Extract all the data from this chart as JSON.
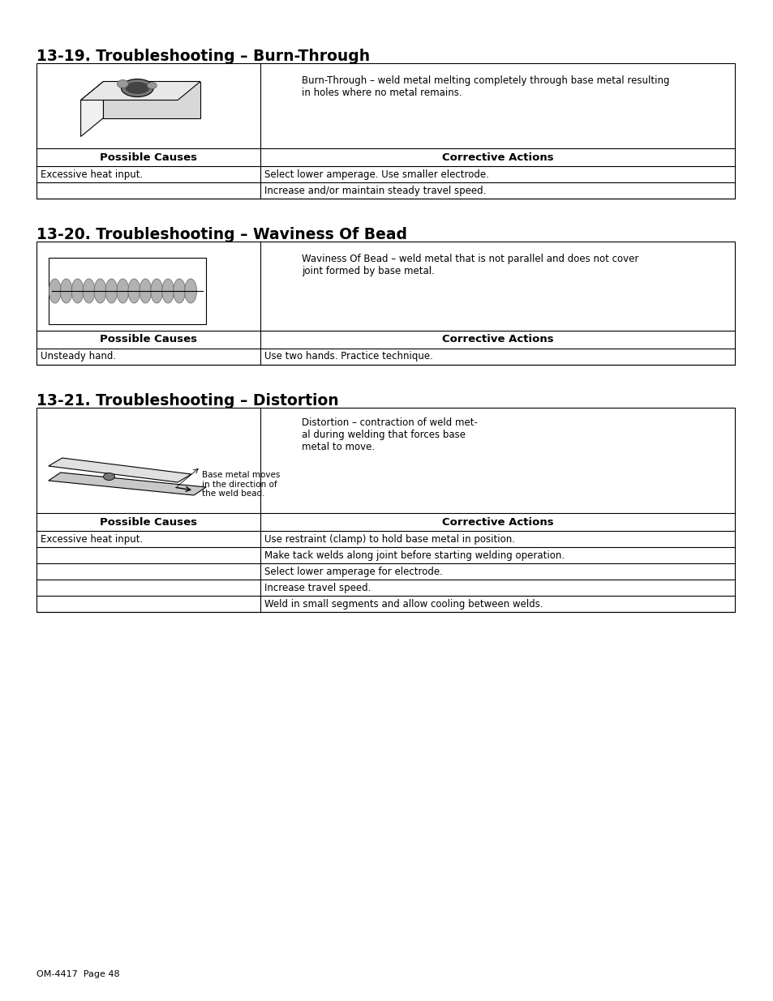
{
  "page_bg": "#ffffff",
  "text_color": "#000000",
  "footer_text": "OM-4417  Page 48",
  "section1": {
    "title": "13-19. Troubleshooting – Burn-Through",
    "description": "Burn-Through – weld metal melting completely through base metal resulting\nin holes where no metal remains.",
    "header_col1": "Possible Causes",
    "header_col2": "Corrective Actions",
    "rows": [
      [
        "Excessive heat input.",
        "Select lower amperage. Use smaller electrode."
      ],
      [
        "",
        "Increase and/or maintain steady travel speed."
      ]
    ]
  },
  "section2": {
    "title": "13-20. Troubleshooting – Waviness Of Bead",
    "description": "Waviness Of Bead – weld metal that is not parallel and does not cover\njoint formed by base metal.",
    "header_col1": "Possible Causes",
    "header_col2": "Corrective Actions",
    "rows": [
      [
        "Unsteady hand.",
        "Use two hands. Practice technique."
      ]
    ]
  },
  "section3": {
    "title": "13-21. Troubleshooting – Distortion",
    "description": "Distortion – contraction of weld met-\nal during welding that forces base\nmetal to move.",
    "image_label": "Base metal moves\nin the direction of\nthe weld bead.",
    "header_col1": "Possible Causes",
    "header_col2": "Corrective Actions",
    "rows": [
      [
        "Excessive heat input.",
        "Use restraint (clamp) to hold base metal in position."
      ],
      [
        "",
        "Make tack welds along joint before starting welding operation."
      ],
      [
        "",
        "Select lower amperage for electrode."
      ],
      [
        "",
        "Increase travel speed."
      ],
      [
        "",
        "Weld in small segments and allow cooling between welds."
      ]
    ]
  }
}
